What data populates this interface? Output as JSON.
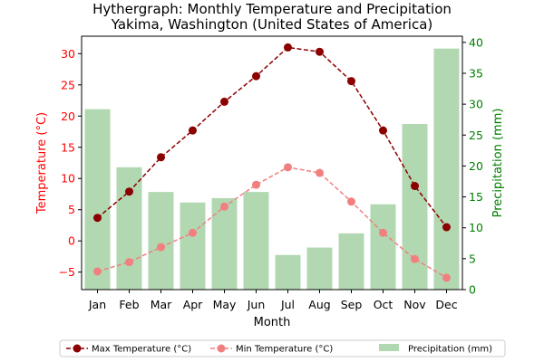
{
  "chart_data": {
    "type": "bar-line-combo",
    "title": "Hythergraph: Monthly Temperature and Precipitation",
    "subtitle": "Yakima, Washington (United States of America)",
    "xlabel": "Month",
    "ylabel_left": "Temperature (°C)",
    "ylabel_right": "Precipitation (mm)",
    "categories": [
      "Jan",
      "Feb",
      "Mar",
      "Apr",
      "May",
      "Jun",
      "Jul",
      "Aug",
      "Sep",
      "Oct",
      "Nov",
      "Dec"
    ],
    "ylim_left": [
      -7.8,
      32.8
    ],
    "yticks_left": [
      -5,
      0,
      5,
      10,
      15,
      20,
      25,
      30
    ],
    "ylim_right": [
      0,
      41
    ],
    "yticks_right": [
      0,
      5,
      10,
      15,
      20,
      25,
      30,
      35,
      40
    ],
    "series": [
      {
        "name": "Max Temperature (°C)",
        "kind": "line",
        "axis": "left",
        "color": "#8b0000",
        "values": [
          3.7,
          7.9,
          13.4,
          17.7,
          22.3,
          26.4,
          31.0,
          30.3,
          25.6,
          17.7,
          8.8,
          2.2
        ]
      },
      {
        "name": "Min Temperature (°C)",
        "kind": "line",
        "axis": "left",
        "color": "#f08080",
        "values": [
          -4.9,
          -3.4,
          -1.0,
          1.3,
          5.5,
          9.0,
          11.8,
          10.9,
          6.3,
          1.3,
          -2.9,
          -5.9
        ]
      },
      {
        "name": "Precipitation (mm)",
        "kind": "bar",
        "axis": "right",
        "color": "#b2d8b2",
        "values": [
          29.2,
          19.8,
          15.8,
          14.1,
          14.8,
          15.8,
          5.6,
          6.8,
          9.1,
          13.8,
          26.8,
          39.0
        ]
      }
    ],
    "legend_position": "bottom-center",
    "grid": false,
    "colors": {
      "left_axis": "#ff0000",
      "right_axis": "#008000"
    }
  }
}
